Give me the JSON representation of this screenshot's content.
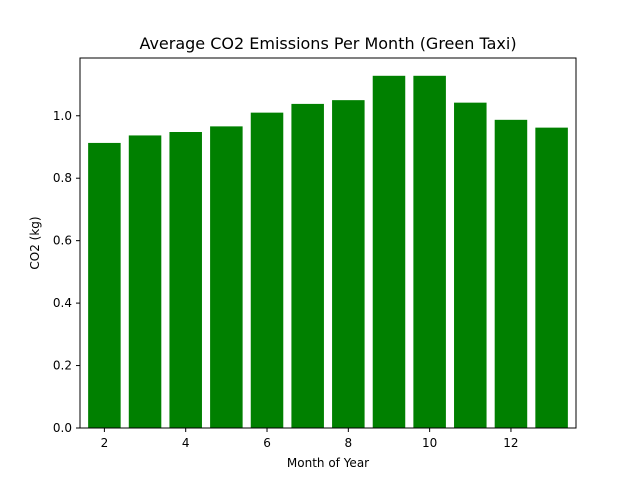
{
  "chart_data": {
    "type": "bar",
    "title": "Average CO2 Emissions Per Month (Green Taxi)",
    "xlabel": "Month of Year",
    "ylabel": "CO2 (kg)",
    "x": [
      2,
      3,
      4,
      5,
      6,
      7,
      8,
      9,
      10,
      11,
      12,
      13
    ],
    "values": [
      0.913,
      0.937,
      0.948,
      0.966,
      1.01,
      1.038,
      1.05,
      1.128,
      1.128,
      1.042,
      0.987,
      0.962
    ],
    "bar_color": "#008000",
    "xlim": [
      1.4,
      13.6
    ],
    "ylim": [
      0,
      1.185
    ],
    "xticks": [
      2,
      4,
      6,
      8,
      10,
      12
    ],
    "yticks": [
      0.0,
      0.2,
      0.4,
      0.6,
      0.8,
      1.0
    ],
    "ytick_labels": [
      "0.0",
      "0.2",
      "0.4",
      "0.6",
      "0.8",
      "1.0"
    ],
    "grid": false,
    "legend": "none"
  }
}
